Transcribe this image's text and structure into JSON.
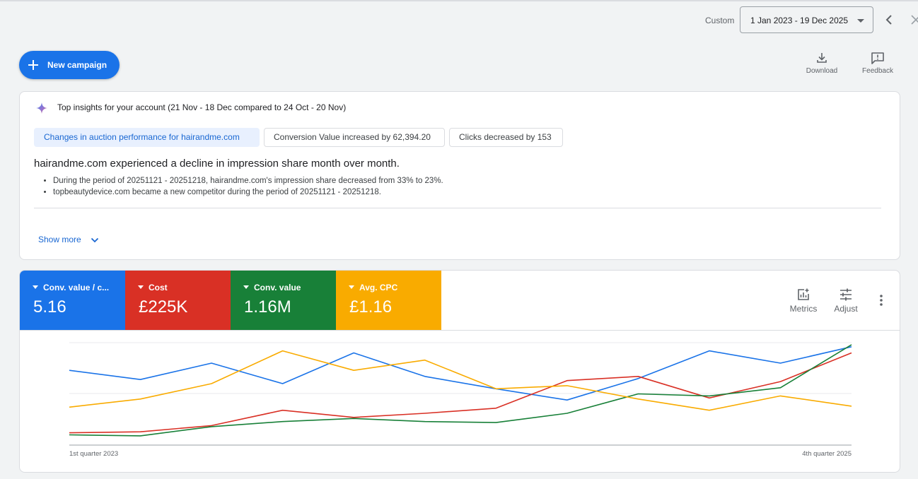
{
  "header": {
    "custom_label": "Custom",
    "date_range": "1 Jan 2023 - 19 Dec 2025",
    "prev_icon": "chevron-left-icon",
    "next_icon": "close-icon"
  },
  "actions": {
    "new_campaign": "New campaign",
    "download": "Download",
    "feedback": "Feedback"
  },
  "insights": {
    "title": "Top insights for your account (21 Nov - 18 Dec compared to 24 Oct - 20 Nov)",
    "chips": [
      "Changes in auction performance for hairandme.com",
      "Conversion Value increased by 62,394.20",
      "Clicks decreased by 153"
    ],
    "headline": "hairandme.com experienced a decline in impression share month over month.",
    "bullets": [
      "During the period of 20251121 - 20251218, hairandme.com's impression share decreased from 33% to 23%.",
      "topbeautydevice.com became a new competitor during the period of 20251121 - 20251218."
    ],
    "show_more": "Show more"
  },
  "metrics": {
    "tiles": [
      {
        "name": "Conv. value / c...",
        "value": "5.16",
        "color": "#1a73e8"
      },
      {
        "name": "Cost",
        "value": "£225K",
        "color": "#d93025"
      },
      {
        "name": "Conv. value",
        "value": "1.16M",
        "color": "#188038"
      },
      {
        "name": "Avg. CPC",
        "value": "£1.16",
        "color": "#f9ab00"
      }
    ],
    "metrics_label": "Metrics",
    "adjust_label": "Adjust"
  },
  "chart_data": {
    "type": "line",
    "x_start_label": "1st quarter 2023",
    "x_end_label": "4th quarter 2025",
    "grid": true,
    "y_scale": "relative 0-100 (no axis values shown)",
    "series": [
      {
        "name": "Conv. value / c...",
        "color": "#1a73e8",
        "values": [
          73,
          64,
          80,
          60,
          90,
          67,
          55,
          44,
          65,
          92,
          80,
          96
        ]
      },
      {
        "name": "Cost",
        "color": "#d93025",
        "values": [
          12,
          13,
          19,
          34,
          27,
          31,
          36,
          63,
          67,
          46,
          62,
          90
        ]
      },
      {
        "name": "Conv. value",
        "color": "#188038",
        "values": [
          10,
          9,
          18,
          23,
          26,
          23,
          22,
          31,
          50,
          48,
          56,
          98
        ]
      },
      {
        "name": "Avg. CPC",
        "color": "#f9ab00",
        "values": [
          37,
          45,
          60,
          92,
          73,
          83,
          55,
          58,
          45,
          34,
          48,
          38
        ]
      }
    ]
  }
}
